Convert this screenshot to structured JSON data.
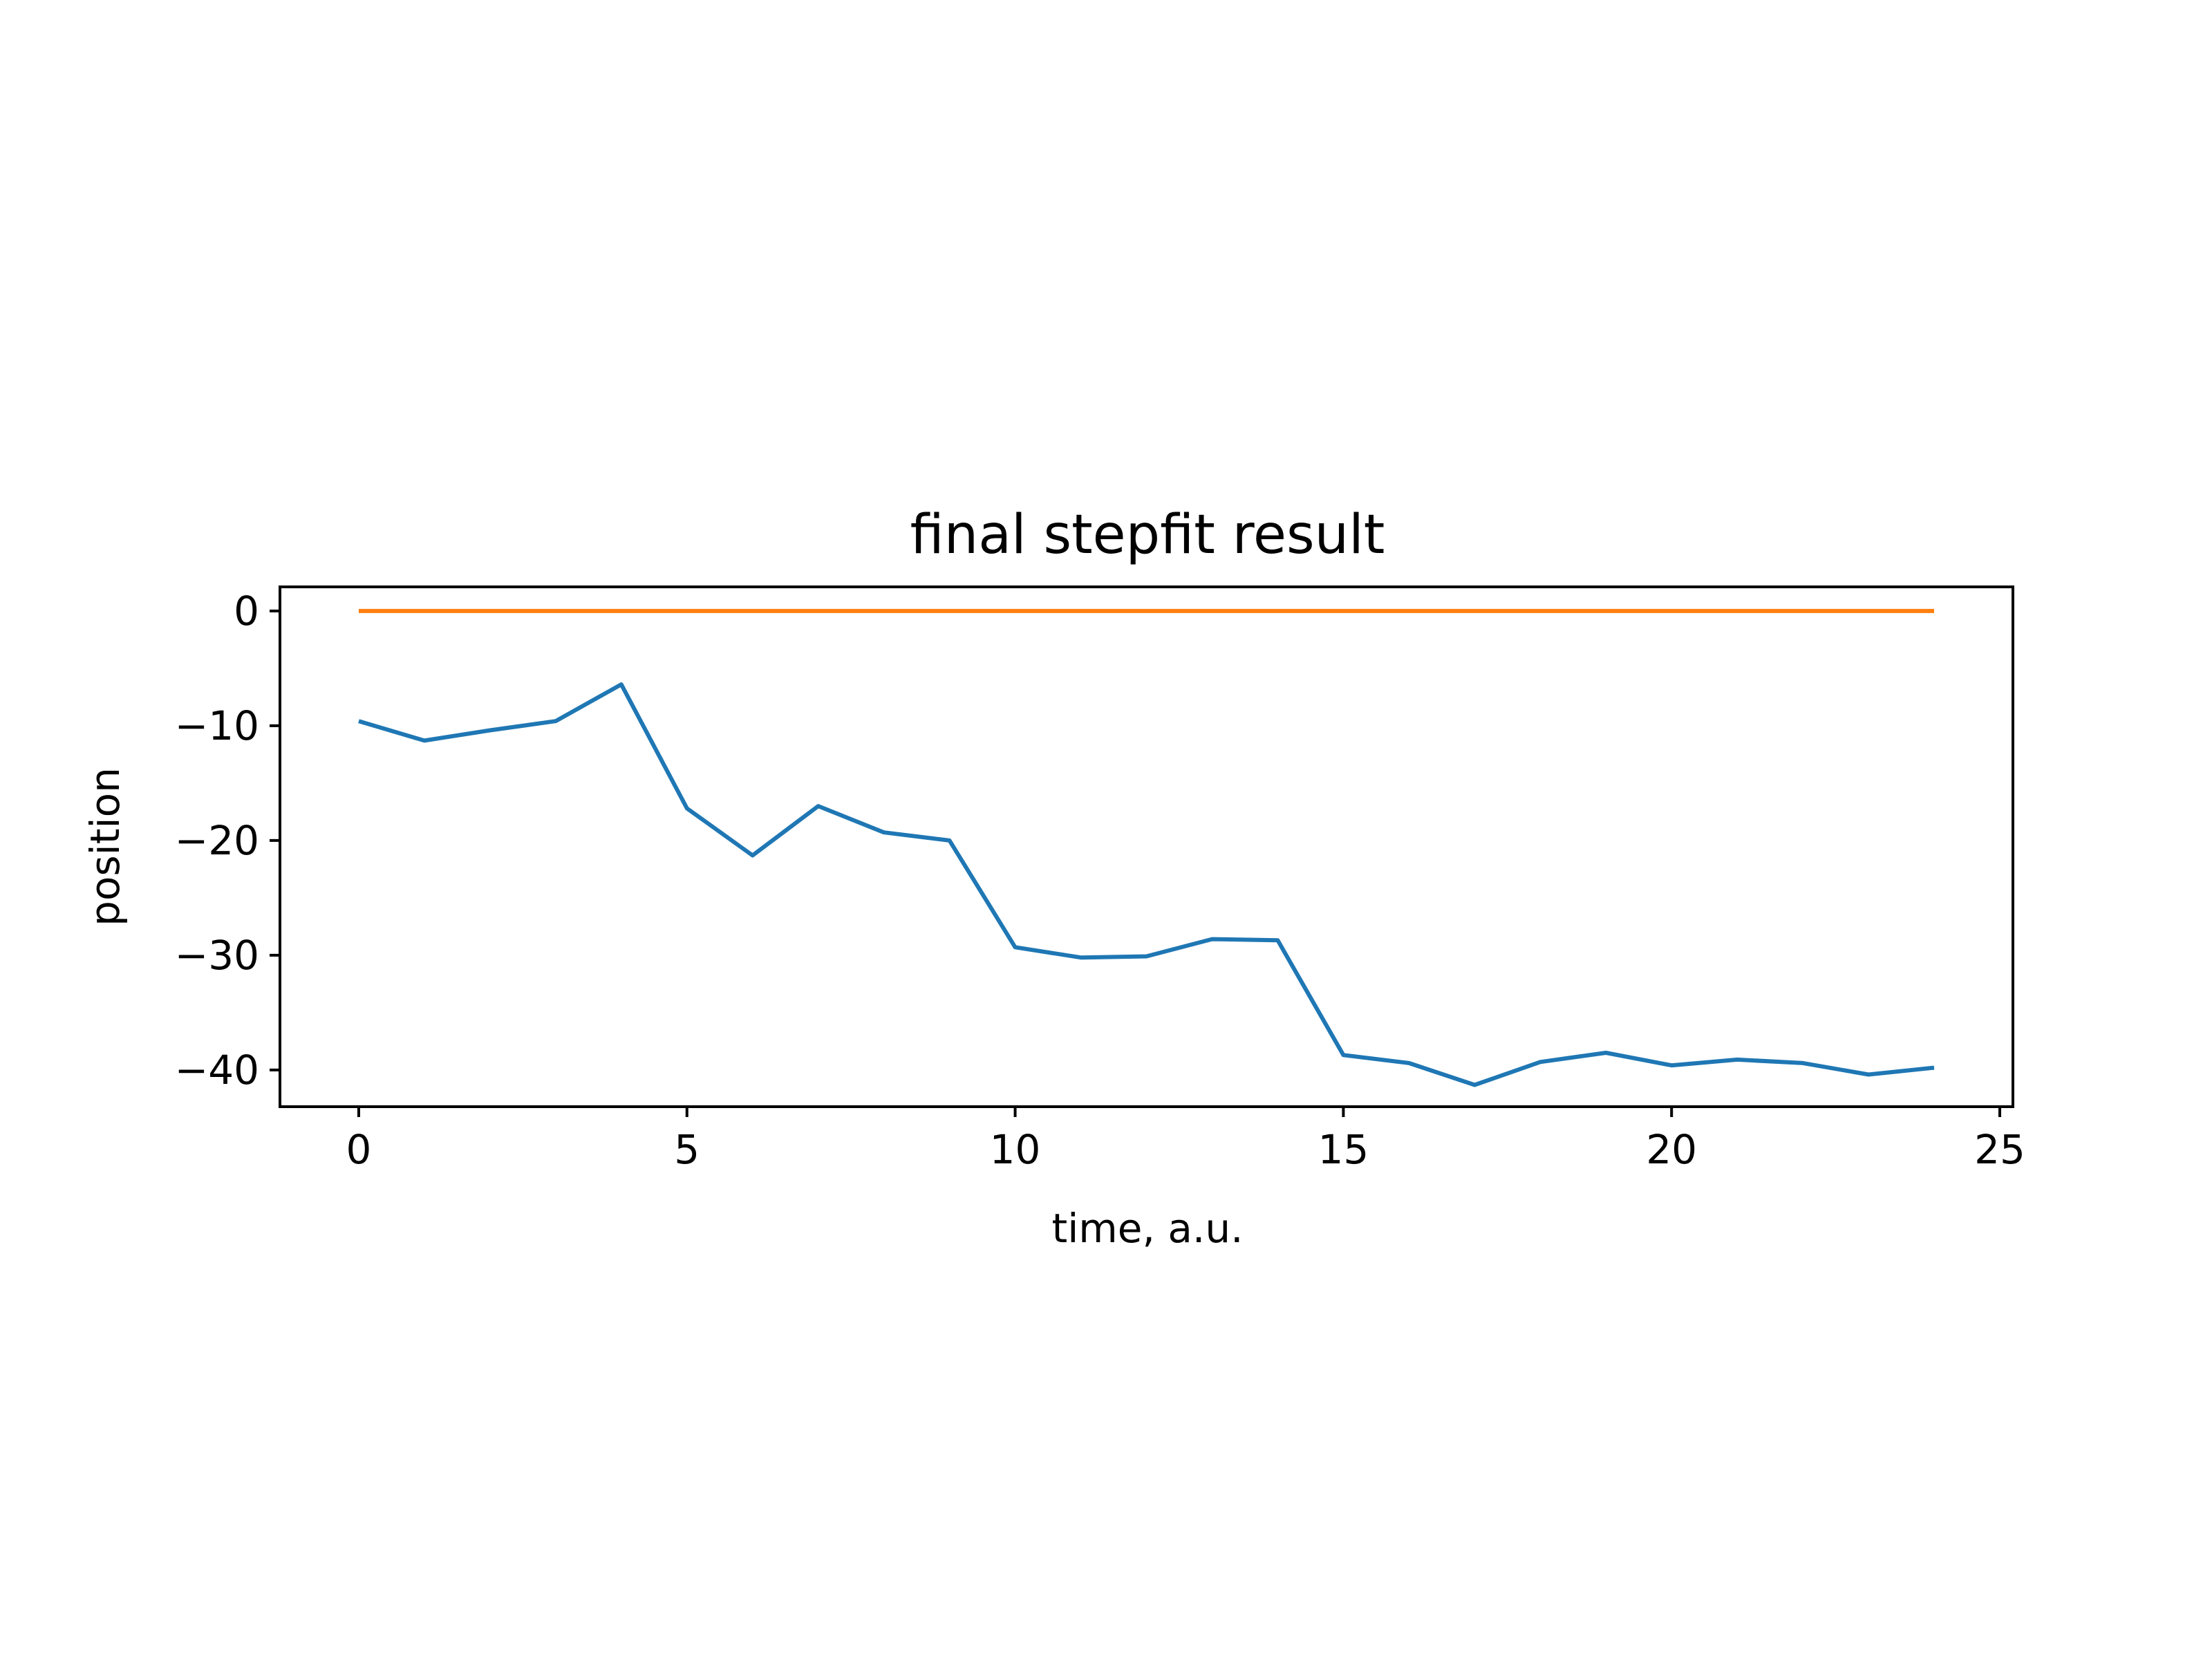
{
  "chart_data": {
    "type": "line",
    "title": "final stepfit result",
    "xlabel": "time, a.u.",
    "ylabel": "position",
    "xlim": [
      -1.2,
      25.2
    ],
    "ylim": [
      -43.2,
      2.1
    ],
    "xticks": [
      0,
      5,
      10,
      15,
      20,
      25
    ],
    "yticks": [
      0,
      -10,
      -20,
      -30,
      -40
    ],
    "xtick_labels": [
      "0",
      "5",
      "10",
      "15",
      "20",
      "25"
    ],
    "ytick_labels": [
      "0",
      "−10",
      "−20",
      "−30",
      "−40"
    ],
    "grid": false,
    "series": [
      {
        "color": "#1f77b4",
        "x": [
          0,
          1,
          2,
          3,
          4,
          5,
          6,
          7,
          8,
          9,
          10,
          11,
          12,
          13,
          14,
          15,
          16,
          17,
          18,
          19,
          20,
          21,
          22,
          23,
          24
        ],
        "y": [
          -9.6,
          -11.3,
          -10.4,
          -9.6,
          -6.4,
          -17.2,
          -21.3,
          -17.0,
          -19.3,
          -20.0,
          -29.3,
          -30.2,
          -30.1,
          -28.6,
          -28.7,
          -38.7,
          -39.4,
          -41.3,
          -39.3,
          -38.5,
          -39.6,
          -39.1,
          -39.4,
          -40.4,
          -39.8
        ]
      },
      {
        "color": "#ff7f0e",
        "x": [
          0,
          24
        ],
        "y": [
          0,
          0
        ]
      }
    ]
  }
}
